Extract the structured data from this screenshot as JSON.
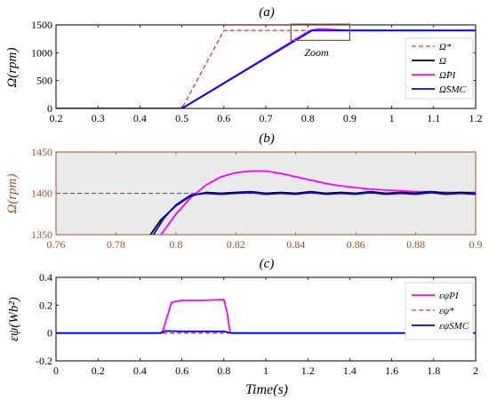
{
  "colors": {
    "reference": "#e53935",
    "measured": "#000000",
    "pi": "#ff00ff",
    "smc": "#0000ff",
    "zoom_box": "#a0522d",
    "panel_b_axes": "#a0522d",
    "panel_b_bg": "#eaeaea"
  },
  "chart_data": [
    {
      "id": "a",
      "type": "line",
      "panel_label": "(a)",
      "xlabel": "",
      "ylabel": "Ω(rpm)",
      "xlim": [
        0.2,
        1.2
      ],
      "ylim": [
        0,
        1500
      ],
      "x_ticks": [
        "0.2",
        "0.3",
        "0.4",
        "0.5",
        "0.6",
        "0.7",
        "0.8",
        "0.9",
        "1",
        "1.1",
        "1.2"
      ],
      "y_ticks": [
        "0",
        "500",
        "1000",
        "1500"
      ],
      "zoom_label": "Zoom",
      "zoom_region": {
        "x": [
          0.76,
          0.9
        ],
        "y": [
          1350,
          1450
        ]
      },
      "grid": false,
      "legend_position": "right",
      "series": [
        {
          "name": "Ω*",
          "style": "dashed",
          "x": [
            0.2,
            0.5,
            0.6,
            1.2
          ],
          "y": [
            0,
            0,
            1400,
            1400
          ]
        },
        {
          "name": "Ω",
          "style": "solid",
          "x": [
            0.2,
            0.5,
            0.81,
            0.83,
            0.85,
            1.2
          ],
          "y": [
            0,
            0,
            1400,
            1402,
            1400,
            1400
          ]
        },
        {
          "name": "Ω̂PI",
          "style": "solid",
          "x": [
            0.2,
            0.5,
            0.8,
            0.81,
            0.83,
            0.86,
            0.9,
            1.2
          ],
          "y": [
            0,
            0,
            1375,
            1405,
            1427,
            1415,
            1402,
            1400
          ]
        },
        {
          "name": "Ω̂SMC",
          "style": "solid",
          "x": [
            0.2,
            0.5,
            0.81,
            0.83,
            0.85,
            1.2
          ],
          "y": [
            0,
            0,
            1400,
            1402,
            1400,
            1400
          ]
        }
      ]
    },
    {
      "id": "b",
      "type": "line",
      "panel_label": "(b)",
      "xlabel": "",
      "ylabel": "Ω(rpm)",
      "xlim": [
        0.76,
        0.9
      ],
      "ylim": [
        1350,
        1450
      ],
      "x_ticks": [
        "0.76",
        "0.78",
        "0.8",
        "0.82",
        "0.84",
        "0.86",
        "0.88",
        "0.9"
      ],
      "y_ticks": [
        "1350",
        "1400",
        "1450"
      ],
      "grid": false,
      "series": [
        {
          "name": "Ω*",
          "style": "dashed",
          "x": [
            0.76,
            0.9
          ],
          "y": [
            1400,
            1400
          ]
        },
        {
          "name": "Ω̂PI",
          "style": "solid",
          "x": [
            0.795,
            0.8,
            0.805,
            0.81,
            0.815,
            0.82,
            0.825,
            0.83,
            0.835,
            0.84,
            0.845,
            0.85,
            0.855,
            0.86,
            0.865,
            0.87,
            0.875,
            0.88,
            0.885,
            0.89,
            0.895,
            0.9
          ],
          "y": [
            1350,
            1375,
            1395,
            1410,
            1420,
            1425,
            1427,
            1427,
            1424,
            1420,
            1416,
            1412,
            1409,
            1407,
            1405,
            1404,
            1403,
            1402,
            1402,
            1401,
            1401,
            1401
          ]
        },
        {
          "name": "Ω",
          "style": "solid",
          "x": [
            0.7915,
            0.795,
            0.8,
            0.805,
            0.81,
            0.815,
            0.82,
            0.825,
            0.83,
            0.835,
            0.84,
            0.845,
            0.85,
            0.855,
            0.86,
            0.865,
            0.87,
            0.875,
            0.88,
            0.885,
            0.89,
            0.895,
            0.9
          ],
          "y": [
            1350,
            1368,
            1385,
            1397,
            1401,
            1400,
            1401,
            1402,
            1400,
            1401,
            1400,
            1402,
            1400,
            1401,
            1400,
            1402,
            1400,
            1401,
            1400,
            1402,
            1400,
            1401,
            1400
          ]
        },
        {
          "name": "Ω̂SMC",
          "style": "solid",
          "x": [
            0.7925,
            0.796,
            0.8,
            0.805,
            0.81,
            0.815,
            0.82,
            0.825,
            0.83,
            0.835,
            0.84,
            0.845,
            0.85,
            0.855,
            0.86,
            0.865,
            0.87,
            0.875,
            0.88,
            0.885,
            0.89,
            0.895,
            0.9
          ],
          "y": [
            1350,
            1370,
            1386,
            1398,
            1400,
            1399,
            1400,
            1401,
            1399,
            1400,
            1399,
            1401,
            1399,
            1400,
            1399,
            1401,
            1399,
            1400,
            1399,
            1401,
            1399,
            1400,
            1399
          ]
        }
      ]
    },
    {
      "id": "c",
      "type": "line",
      "panel_label": "(c)",
      "xlabel": "Time(s)",
      "ylabel": "εψ(Wb²)",
      "xlim": [
        0,
        2
      ],
      "ylim": [
        -0.2,
        0.4
      ],
      "x_ticks": [
        "0",
        "0.2",
        "0.4",
        "0.6",
        "0.8",
        "1",
        "1.2",
        "1.4",
        "1.6",
        "1.8",
        "2"
      ],
      "y_ticks": [
        "-0.2",
        "0",
        "0.2",
        "0.4"
      ],
      "grid": false,
      "legend_position": "right",
      "series": [
        {
          "name": "εψPI",
          "style": "solid",
          "x": [
            0,
            0.5,
            0.51,
            0.55,
            0.6,
            0.7,
            0.8,
            0.815,
            0.83,
            2
          ],
          "y": [
            0,
            0,
            0.02,
            0.22,
            0.235,
            0.235,
            0.24,
            0.15,
            0,
            0
          ]
        },
        {
          "name": "εψ*",
          "style": "dashed",
          "x": [
            0,
            2
          ],
          "y": [
            0,
            0
          ]
        },
        {
          "name": "εψSMC",
          "style": "solid",
          "x": [
            0,
            0.5,
            0.52,
            0.6,
            0.8,
            0.82,
            0.84,
            2
          ],
          "y": [
            0,
            0,
            0.015,
            0.012,
            0.012,
            0.004,
            0,
            0
          ]
        }
      ]
    }
  ]
}
